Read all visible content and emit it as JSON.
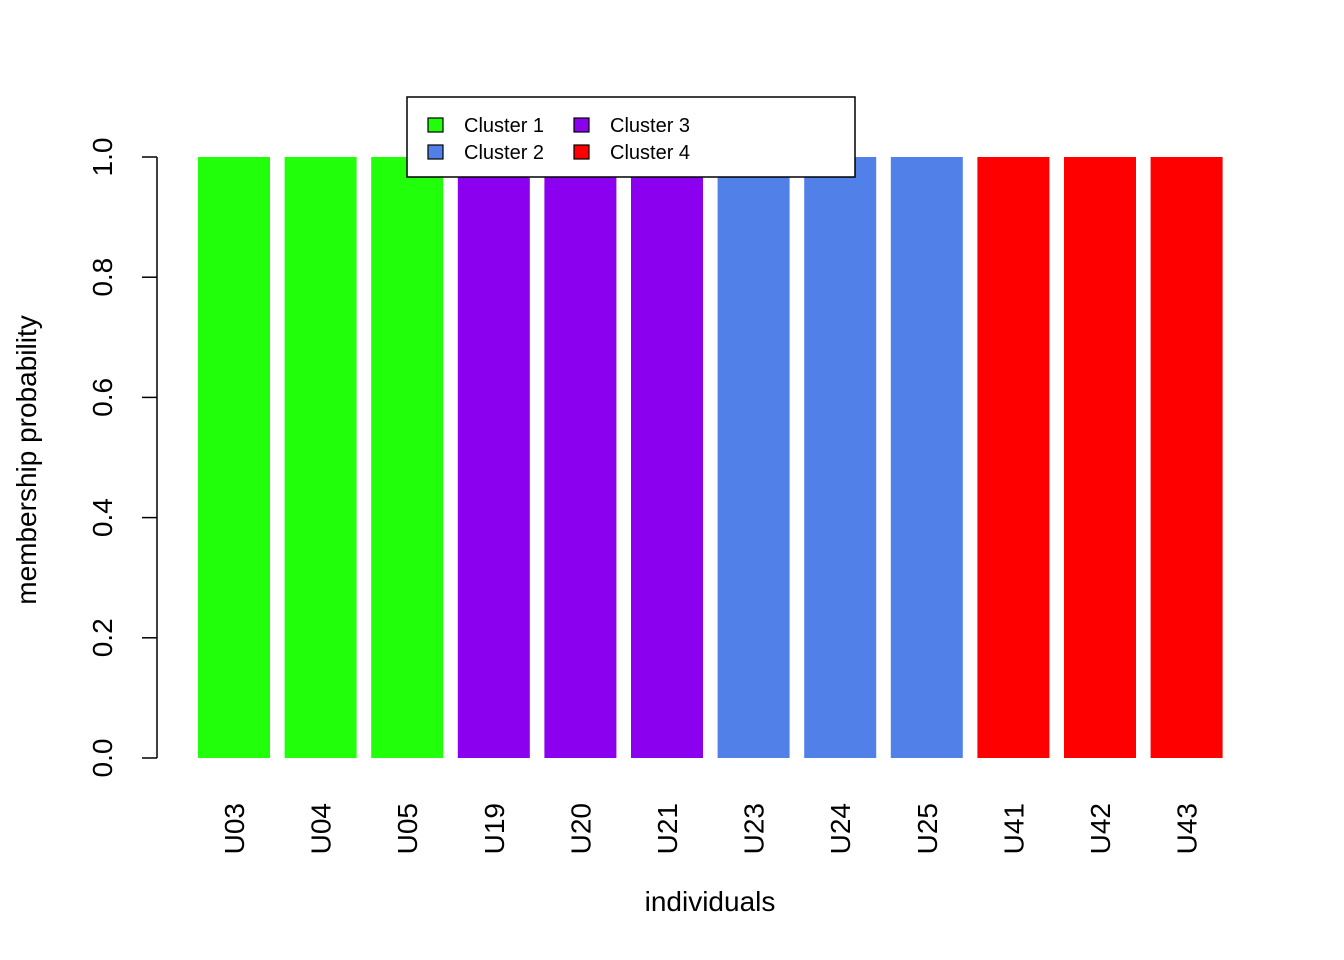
{
  "chart_data": {
    "type": "bar",
    "categories": [
      "U03",
      "U04",
      "U05",
      "U19",
      "U20",
      "U21",
      "U23",
      "U24",
      "U25",
      "U41",
      "U42",
      "U43"
    ],
    "series": [
      {
        "name": "Cluster 1",
        "color": "#22FF0B",
        "values": [
          1,
          1,
          1,
          0,
          0,
          0,
          0,
          0,
          0,
          0,
          0,
          0
        ]
      },
      {
        "name": "Cluster 2",
        "color": "#5280E9",
        "values": [
          0,
          0,
          0,
          0,
          0,
          0,
          1,
          1,
          1,
          0,
          0,
          0
        ]
      },
      {
        "name": "Cluster 3",
        "color": "#8B00EE",
        "values": [
          0,
          0,
          0,
          1,
          1,
          1,
          0,
          0,
          0,
          0,
          0,
          0
        ]
      },
      {
        "name": "Cluster 4",
        "color": "#FF0000",
        "values": [
          0,
          0,
          0,
          0,
          0,
          0,
          0,
          0,
          0,
          1,
          1,
          1
        ]
      }
    ],
    "stacked": true,
    "xlabel": "individuals",
    "ylabel": "membership probability",
    "ylim": [
      0,
      1
    ],
    "yticks": [
      "0.0",
      "0.2",
      "0.4",
      "0.6",
      "0.8",
      "1.0"
    ],
    "grid": false,
    "legend_position": "top-center"
  }
}
